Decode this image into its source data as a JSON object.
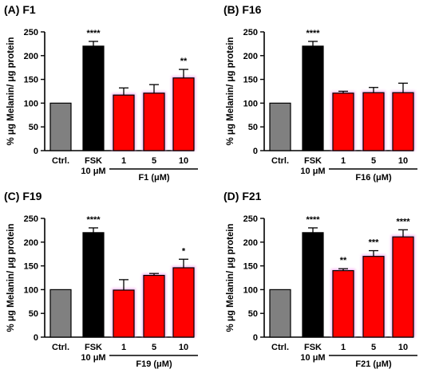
{
  "figure": {
    "colors": {
      "control": "#808080",
      "fsk": "#000000",
      "treated": "#ff0000",
      "glow": "#f3a6f0"
    }
  },
  "chart_data": [
    {
      "type": "bar",
      "title": "(A) F1",
      "ylabel": "% μg Melanin/ μg protein",
      "ylim": [
        0,
        250
      ],
      "yticks": [
        "0",
        "50",
        "100",
        "150",
        "200",
        "250"
      ],
      "categories": [
        "Ctrl.",
        "FSK",
        "1",
        "5",
        "10"
      ],
      "sublabel": "10 μM",
      "group_label": "F1 (μM)",
      "values": [
        100,
        220,
        117,
        121,
        153
      ],
      "errors": [
        0,
        10,
        15,
        18,
        18
      ],
      "significance": [
        "",
        "****",
        "",
        "",
        "**"
      ]
    },
    {
      "type": "bar",
      "title": "(B) F16",
      "ylabel": "% μg Melanin/ μg protein",
      "ylim": [
        0,
        250
      ],
      "yticks": [
        "0",
        "50",
        "100",
        "150",
        "200",
        "250"
      ],
      "categories": [
        "Ctrl.",
        "FSK",
        "1",
        "5",
        "10"
      ],
      "sublabel": "10 μM",
      "group_label": "F16 (μM)",
      "values": [
        100,
        220,
        121,
        122,
        122
      ],
      "errors": [
        0,
        10,
        4,
        11,
        20
      ],
      "significance": [
        "",
        "****",
        "",
        "",
        ""
      ]
    },
    {
      "type": "bar",
      "title": "(C) F19",
      "ylabel": "% μg Melanin/ μg protein",
      "ylim": [
        0,
        250
      ],
      "yticks": [
        "0",
        "50",
        "100",
        "150",
        "200",
        "250"
      ],
      "categories": [
        "Ctrl.",
        "FSK",
        "1",
        "5",
        "10"
      ],
      "sublabel": "10 μM",
      "group_label": "F19 (μM)",
      "values": [
        100,
        220,
        99,
        130,
        146
      ],
      "errors": [
        0,
        10,
        22,
        4,
        18
      ],
      "significance": [
        "",
        "****",
        "",
        "",
        "*"
      ]
    },
    {
      "type": "bar",
      "title": "(D) F21",
      "ylabel": "% μg Melanin/ μg protein",
      "ylim": [
        0,
        250
      ],
      "yticks": [
        "0",
        "50",
        "100",
        "150",
        "200",
        "250"
      ],
      "categories": [
        "Ctrl.",
        "FSK",
        "1",
        "5",
        "10"
      ],
      "sublabel": "10 μM",
      "group_label": "F21 (μM)",
      "values": [
        100,
        220,
        140,
        170,
        211
      ],
      "errors": [
        0,
        10,
        4,
        12,
        15
      ],
      "significance": [
        "",
        "****",
        "**",
        "***",
        "****"
      ]
    }
  ]
}
